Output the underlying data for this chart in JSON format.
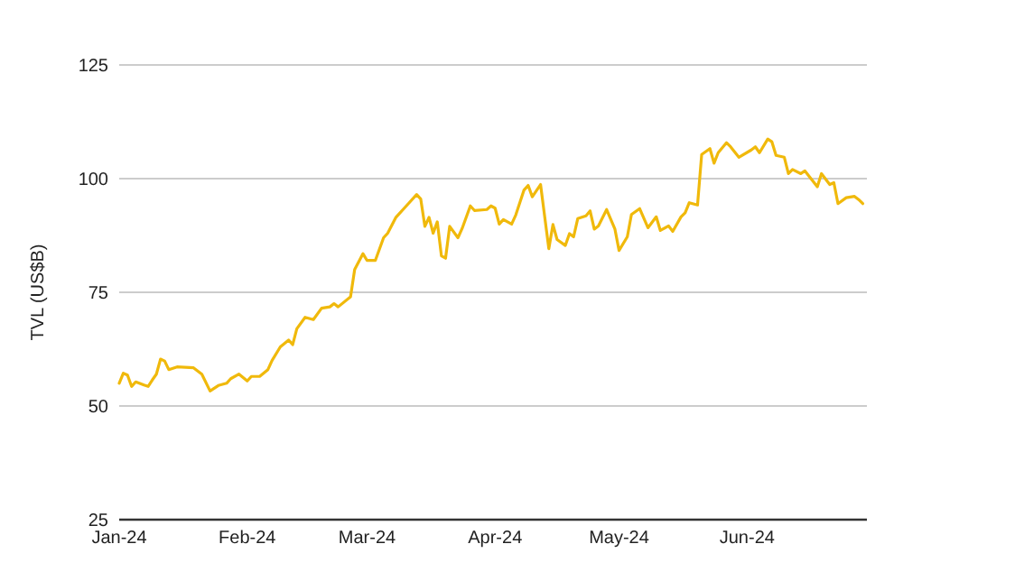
{
  "chart_data": {
    "type": "line",
    "ylabel": "TVL (US$B)",
    "xlim": [
      "2024-01-01",
      "2024-06-30"
    ],
    "xticks": [
      {
        "value": "2024-01-01",
        "label": "Jan-24"
      },
      {
        "value": "2024-02-01",
        "label": "Feb-24"
      },
      {
        "value": "2024-03-01",
        "label": "Mar-24"
      },
      {
        "value": "2024-04-01",
        "label": "Apr-24"
      },
      {
        "value": "2024-05-01",
        "label": "May-24"
      },
      {
        "value": "2024-06-01",
        "label": "Jun-24"
      }
    ],
    "ylim": [
      25,
      125
    ],
    "yticks": [
      25,
      50,
      75,
      100,
      125
    ],
    "grid": "y",
    "x": [
      "2024-01-01",
      "2024-01-02",
      "2024-01-03",
      "2024-01-04",
      "2024-01-05",
      "2024-01-07",
      "2024-01-08",
      "2024-01-09",
      "2024-01-10",
      "2024-01-11",
      "2024-01-12",
      "2024-01-13",
      "2024-01-15",
      "2024-01-19",
      "2024-01-21",
      "2024-01-23",
      "2024-01-25",
      "2024-01-27",
      "2024-01-28",
      "2024-01-30",
      "2024-02-01",
      "2024-02-02",
      "2024-02-04",
      "2024-02-06",
      "2024-02-07",
      "2024-02-09",
      "2024-02-11",
      "2024-02-12",
      "2024-02-13",
      "2024-02-15",
      "2024-02-17",
      "2024-02-19",
      "2024-02-21",
      "2024-02-22",
      "2024-02-23",
      "2024-02-26",
      "2024-02-27",
      "2024-02-29",
      "2024-03-01",
      "2024-03-03",
      "2024-03-05",
      "2024-03-06",
      "2024-03-08",
      "2024-03-11",
      "2024-03-13",
      "2024-03-14",
      "2024-03-15",
      "2024-03-16",
      "2024-03-17",
      "2024-03-18",
      "2024-03-19",
      "2024-03-20",
      "2024-03-21",
      "2024-03-23",
      "2024-03-24",
      "2024-03-26",
      "2024-03-27",
      "2024-03-30",
      "2024-03-31",
      "2024-04-01",
      "2024-04-02",
      "2024-04-03",
      "2024-04-05",
      "2024-04-06",
      "2024-04-08",
      "2024-04-09",
      "2024-04-10",
      "2024-04-12",
      "2024-04-14",
      "2024-04-15",
      "2024-04-16",
      "2024-04-18",
      "2024-04-19",
      "2024-04-20",
      "2024-04-21",
      "2024-04-23",
      "2024-04-24",
      "2024-04-25",
      "2024-04-26",
      "2024-04-28",
      "2024-04-30",
      "2024-05-01",
      "2024-05-03",
      "2024-05-04",
      "2024-05-06",
      "2024-05-08",
      "2024-05-10",
      "2024-05-11",
      "2024-05-13",
      "2024-05-14",
      "2024-05-16",
      "2024-05-17",
      "2024-05-18",
      "2024-05-20",
      "2024-05-21",
      "2024-05-23",
      "2024-05-24",
      "2024-05-25",
      "2024-05-27",
      "2024-05-28",
      "2024-05-30",
      "2024-06-02",
      "2024-06-03",
      "2024-06-04",
      "2024-06-06",
      "2024-06-07",
      "2024-06-08",
      "2024-06-10",
      "2024-06-11",
      "2024-06-12",
      "2024-06-14",
      "2024-06-15",
      "2024-06-18",
      "2024-06-19",
      "2024-06-21",
      "2024-06-22",
      "2024-06-23",
      "2024-06-25",
      "2024-06-27",
      "2024-06-28",
      "2024-06-29"
    ],
    "series": [
      {
        "color": "#f0b90b",
        "values": [
          55.0,
          57.2,
          56.8,
          54.3,
          55.3,
          54.6,
          54.3,
          55.7,
          57.0,
          60.3,
          59.9,
          58.0,
          58.6,
          58.4,
          57.0,
          53.3,
          54.5,
          55.0,
          56.0,
          57.0,
          55.5,
          56.5,
          56.5,
          58.0,
          60.0,
          63.0,
          64.5,
          63.5,
          67.0,
          69.5,
          69.0,
          71.5,
          71.8,
          72.5,
          71.8,
          74.0,
          80.0,
          83.5,
          82.0,
          82.0,
          87.0,
          88.0,
          91.5,
          94.5,
          96.5,
          95.5,
          89.5,
          91.5,
          88.0,
          90.5,
          83.0,
          82.5,
          89.5,
          87.0,
          89.0,
          94.0,
          93.0,
          93.2,
          94.0,
          93.5,
          90.0,
          91.0,
          90.0,
          92.0,
          97.5,
          98.5,
          96.0,
          98.7,
          84.6,
          89.9,
          86.6,
          85.3,
          87.9,
          87.2,
          91.2,
          91.8,
          92.9,
          88.9,
          89.6,
          93.2,
          88.9,
          84.2,
          87.2,
          92.1,
          93.4,
          89.2,
          91.6,
          88.6,
          89.6,
          88.4,
          91.6,
          92.5,
          94.7,
          94.2,
          105.3,
          106.6,
          103.4,
          105.7,
          107.9,
          107.0,
          104.7,
          106.3,
          107.0,
          105.7,
          108.7,
          108.1,
          105.1,
          104.7,
          101.1,
          102.0,
          101.1,
          101.7,
          98.2,
          101.1,
          98.7,
          99.1,
          94.5,
          95.8,
          96.1,
          95.4,
          94.5
        ]
      }
    ]
  }
}
